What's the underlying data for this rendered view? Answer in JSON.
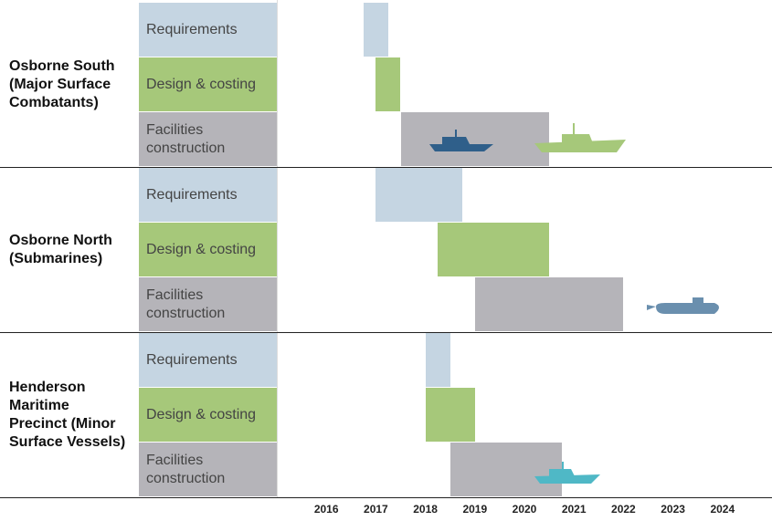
{
  "chart_data": {
    "type": "gantt",
    "groups": [
      {
        "name": "Osborne South (Major Surface Combatants)",
        "tasks": [
          {
            "name": "Requirements",
            "start": 2016.75,
            "end": 2017.25
          },
          {
            "name": "Design & costing",
            "start": 2017.0,
            "end": 2017.5
          },
          {
            "name": "Facilities construction",
            "start": 2017.5,
            "end": 2020.5
          }
        ]
      },
      {
        "name": "Osborne North (Submarines)",
        "tasks": [
          {
            "name": "Requirements",
            "start": 2017.0,
            "end": 2018.75
          },
          {
            "name": "Design & costing",
            "start": 2018.25,
            "end": 2020.5
          },
          {
            "name": "Facilities construction",
            "start": 2019.0,
            "end": 2022.0
          }
        ]
      },
      {
        "name": "Henderson Maritime Precinct (Minor Surface Vessels)",
        "tasks": [
          {
            "name": "Requirements",
            "start": 2018.0,
            "end": 2018.5
          },
          {
            "name": "Design & costing",
            "start": 2018.0,
            "end": 2019.0
          },
          {
            "name": "Facilities construction",
            "start": 2018.5,
            "end": 2020.75
          }
        ]
      }
    ],
    "task_colors": [
      "#c5d5e2",
      "#a6c87a",
      "#b5b4b9"
    ],
    "xlim": [
      2015,
      2025
    ],
    "xticks": [
      2016,
      2017,
      2018,
      2019,
      2020,
      2021,
      2022,
      2023,
      2024
    ]
  }
}
